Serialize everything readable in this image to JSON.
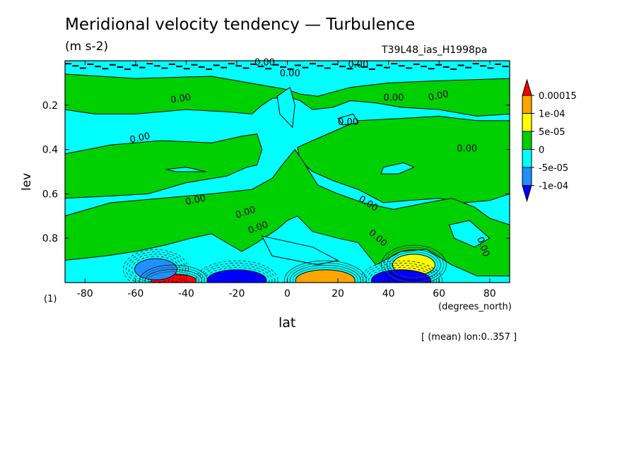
{
  "chart_data": {
    "type": "heatmap",
    "title": "Meridional velocity tendency — Turbulence",
    "units": "(m s-2)",
    "experiment": "T39L48_ias_H1998pa",
    "xlabel": "lat",
    "x_unit": "(degrees_north)",
    "ylabel": "lev",
    "panel_label": "(1)",
    "footer": "[ (mean) lon:0..357 ]",
    "x_ticks": [
      -80,
      -60,
      -40,
      -20,
      0,
      20,
      40,
      60,
      80
    ],
    "x_tick_labels": [
      "-80",
      "-60",
      "-40",
      "-20",
      "0",
      "20",
      "40",
      "60",
      "80"
    ],
    "y_ticks": [
      0.2,
      0.4,
      0.6,
      0.8
    ],
    "y_tick_labels": [
      "0.2",
      "0.4",
      "0.6",
      "0.8"
    ],
    "xlim": [
      -87.9,
      87.9
    ],
    "ylim": [
      0.0,
      1.0
    ],
    "y_inverted": true,
    "colorbar": {
      "labels": [
        "0.00015",
        "1e-04",
        "5e-05",
        "0",
        "-5e-05",
        "-1e-04"
      ],
      "colors": [
        "#ff0000",
        "#ffa500",
        "#ffff00",
        "#00d000",
        "#00ffff",
        "#1e90ff",
        "#0000ff"
      ]
    },
    "contour_label": "0.00",
    "fields": {
      "background": "#00ffff",
      "positive_bands": [
        {
          "region": "upper",
          "lat": [
            -87,
            87
          ],
          "lev": [
            0.1,
            0.2
          ]
        },
        {
          "region": "mid-left",
          "lat": [
            -87,
            -5
          ],
          "lev": [
            0.45,
            0.6
          ]
        },
        {
          "region": "mid-right",
          "lat": [
            5,
            87
          ],
          "lev": [
            0.3,
            0.6
          ]
        },
        {
          "region": "equator",
          "lat": [
            -30,
            30
          ],
          "lev": [
            0.6,
            0.95
          ]
        }
      ],
      "extrema": [
        {
          "lat": -45,
          "lev": 0.99,
          "sign": "positive",
          "max_value": 0.00015
        },
        {
          "lat": 15,
          "lev": 0.99,
          "sign": "positive",
          "max_value": 0.0001
        },
        {
          "lat": 50,
          "lev": 0.92,
          "sign": "positive",
          "max_value": 5e-05
        },
        {
          "lat": -52,
          "lev": 0.94,
          "sign": "negative",
          "max_value": -5e-05
        },
        {
          "lat": -20,
          "lev": 0.99,
          "sign": "negative",
          "max_value": -0.0001
        },
        {
          "lat": 45,
          "lev": 0.99,
          "sign": "negative",
          "max_value": -0.0001
        }
      ]
    }
  }
}
